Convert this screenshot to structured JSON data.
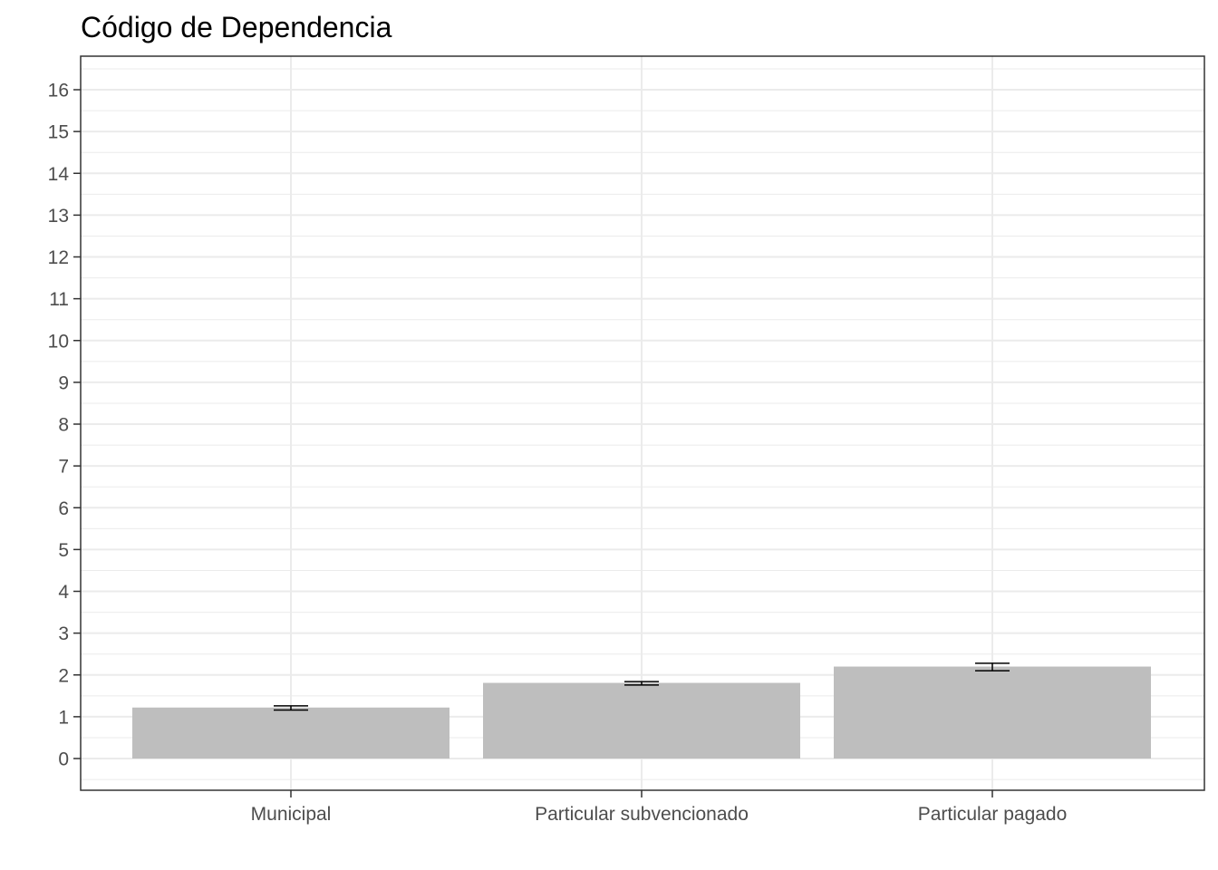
{
  "chart_data": {
    "type": "bar",
    "title": "Código de Dependencia",
    "xlabel": "",
    "ylabel": "",
    "categories": [
      "Municipal",
      "Particular subvencionado",
      "Particular pagado"
    ],
    "values": [
      1.22,
      1.81,
      2.2
    ],
    "error_bars": [
      {
        "low": 1.16,
        "high": 1.26
      },
      {
        "low": 1.76,
        "high": 1.84
      },
      {
        "low": 2.1,
        "high": 2.28
      }
    ],
    "yticks": [
      "0",
      "1",
      "2",
      "3",
      "4",
      "5",
      "6",
      "7",
      "8",
      "9",
      "10",
      "11",
      "12",
      "13",
      "14",
      "15",
      "16"
    ],
    "ylim": [
      -0.75,
      16.8
    ],
    "grid": true,
    "colors": {
      "bar": "#bebebe",
      "errorbar": "#000000",
      "grid": "#ebebeb",
      "panel_border": "#333333"
    }
  }
}
